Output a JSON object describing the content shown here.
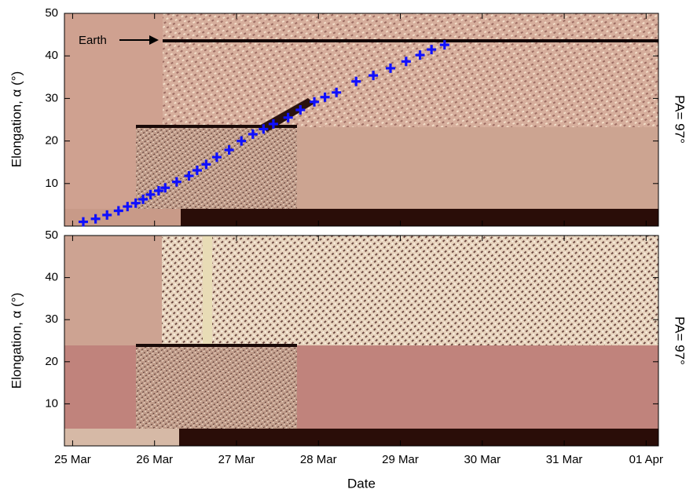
{
  "chart_data": [
    {
      "type": "scatter",
      "y_label": "Elongation, α (°)",
      "side_label": "PA= 97°",
      "annotations": [
        "Earth"
      ],
      "xlim": [
        24.9,
        32.15
      ],
      "xticks": [
        25,
        26,
        27,
        28,
        29,
        30,
        31,
        32
      ],
      "ylim": [
        0,
        50
      ],
      "yticks": [
        10,
        20,
        30,
        40,
        50
      ],
      "series": [
        {
          "color": "#1010ff",
          "x": [
            25.13,
            25.28,
            25.42,
            25.56,
            25.67,
            25.77,
            25.86,
            25.95,
            26.05,
            26.13,
            26.27,
            26.42,
            26.52,
            26.63,
            26.76,
            26.91,
            27.06,
            27.2,
            27.33,
            27.45,
            27.63,
            27.78,
            27.95,
            28.08,
            28.22,
            28.46,
            28.67,
            28.88,
            29.07,
            29.24,
            29.38,
            29.54
          ],
          "values": [
            1.0,
            1.7,
            2.6,
            3.6,
            4.6,
            5.4,
            6.3,
            7.4,
            8.3,
            9.0,
            10.4,
            11.8,
            13.1,
            14.5,
            16.2,
            17.9,
            20.0,
            21.6,
            22.8,
            24.0,
            25.5,
            27.3,
            29.2,
            30.3,
            31.4,
            34.0,
            35.4,
            37.1,
            38.7,
            40.2,
            41.5,
            42.6
          ]
        }
      ]
    },
    {
      "type": "image",
      "y_label": "Elongation, α (°)",
      "side_label": "PA= 97°",
      "x_label": "Date",
      "xlim": [
        24.9,
        32.15
      ],
      "xticks": [
        {
          "value": 25,
          "label": "25 Mar"
        },
        {
          "value": 26,
          "label": "26 Mar"
        },
        {
          "value": 27,
          "label": "27 Mar"
        },
        {
          "value": 28,
          "label": "28 Mar"
        },
        {
          "value": 29,
          "label": "29 Mar"
        },
        {
          "value": 30,
          "label": "30 Mar"
        },
        {
          "value": 31,
          "label": "31 Mar"
        },
        {
          "value": 32,
          "label": "01 Apr"
        }
      ],
      "ylim": [
        0,
        50
      ],
      "yticks": [
        10,
        20,
        30,
        40,
        50
      ]
    }
  ]
}
